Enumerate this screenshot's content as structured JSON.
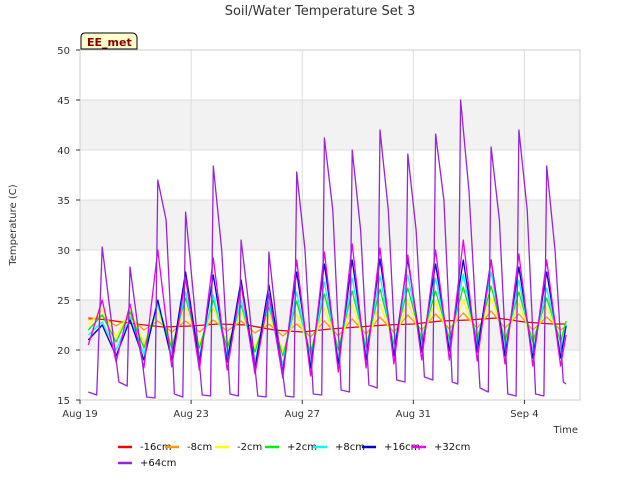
{
  "chart_data": {
    "type": "line",
    "title": "Soil/Water Temperature Set 3",
    "badge": "EE_met",
    "xlabel": "Time",
    "ylabel": "Temperature (C)",
    "ylim": [
      15,
      50
    ],
    "yticks": [
      15,
      20,
      25,
      30,
      35,
      40,
      45,
      50
    ],
    "xlim": [
      0,
      18
    ],
    "xticks": [
      {
        "value": 0,
        "label": "Aug 19"
      },
      {
        "value": 4,
        "label": "Aug 23"
      },
      {
        "value": 8,
        "label": "Aug 27"
      },
      {
        "value": 12,
        "label": "Aug 31"
      },
      {
        "value": 16,
        "label": "Sep 4"
      }
    ],
    "grid": true,
    "legend_placement": "bottom",
    "bands": true,
    "series": [
      {
        "name": "-16cm",
        "color": "#ee0000",
        "points": [
          [
            0.3,
            23.2
          ],
          [
            1,
            23.0
          ],
          [
            2,
            22.6
          ],
          [
            3,
            22.3
          ],
          [
            4,
            22.4
          ],
          [
            5,
            22.6
          ],
          [
            6,
            22.5
          ],
          [
            7,
            22.0
          ],
          [
            8,
            21.8
          ],
          [
            9,
            22.1
          ],
          [
            10,
            22.3
          ],
          [
            11,
            22.5
          ],
          [
            12,
            22.6
          ],
          [
            13,
            22.9
          ],
          [
            14,
            23.0
          ],
          [
            15,
            23.2
          ],
          [
            16,
            22.8
          ],
          [
            17,
            22.6
          ],
          [
            17.5,
            22.6
          ]
        ]
      },
      {
        "name": "-8cm",
        "color": "#ff9900",
        "points": [
          [
            0.3,
            23.0
          ],
          [
            0.8,
            23.4
          ],
          [
            1.3,
            22.4
          ],
          [
            1.8,
            23.3
          ],
          [
            2.3,
            22.0
          ],
          [
            2.8,
            22.9
          ],
          [
            3.3,
            21.8
          ],
          [
            3.8,
            22.9
          ],
          [
            4.3,
            21.8
          ],
          [
            4.8,
            23.0
          ],
          [
            5.3,
            21.9
          ],
          [
            5.8,
            22.9
          ],
          [
            6.3,
            21.7
          ],
          [
            6.8,
            22.6
          ],
          [
            7.3,
            21.4
          ],
          [
            7.8,
            22.6
          ],
          [
            8.3,
            21.3
          ],
          [
            8.8,
            22.9
          ],
          [
            9.3,
            21.4
          ],
          [
            9.8,
            23.1
          ],
          [
            10.3,
            21.6
          ],
          [
            10.8,
            23.3
          ],
          [
            11.3,
            21.8
          ],
          [
            11.8,
            23.5
          ],
          [
            12.3,
            22.0
          ],
          [
            12.8,
            23.6
          ],
          [
            13.3,
            22.1
          ],
          [
            13.8,
            23.7
          ],
          [
            14.3,
            22.2
          ],
          [
            14.8,
            23.9
          ],
          [
            15.3,
            22.2
          ],
          [
            15.8,
            23.6
          ],
          [
            16.3,
            22.0
          ],
          [
            16.8,
            23.3
          ],
          [
            17.3,
            22.0
          ],
          [
            17.5,
            22.4
          ]
        ]
      },
      {
        "name": "-2cm",
        "color": "#ffff00",
        "points": [
          [
            0.3,
            22.5
          ],
          [
            0.8,
            24.0
          ],
          [
            1.3,
            21.3
          ],
          [
            1.8,
            24.0
          ],
          [
            2.3,
            20.7
          ],
          [
            2.8,
            23.8
          ],
          [
            3.3,
            20.6
          ],
          [
            3.8,
            24.3
          ],
          [
            4.3,
            20.6
          ],
          [
            4.8,
            24.2
          ],
          [
            5.3,
            20.6
          ],
          [
            5.8,
            23.8
          ],
          [
            6.3,
            20.3
          ],
          [
            6.8,
            23.5
          ],
          [
            7.3,
            19.9
          ],
          [
            7.8,
            23.6
          ],
          [
            8.3,
            19.9
          ],
          [
            8.8,
            24.2
          ],
          [
            9.3,
            20.2
          ],
          [
            9.8,
            24.5
          ],
          [
            10.3,
            20.5
          ],
          [
            10.8,
            24.6
          ],
          [
            11.3,
            20.8
          ],
          [
            11.8,
            24.8
          ],
          [
            12.3,
            21.1
          ],
          [
            12.8,
            24.8
          ],
          [
            13.3,
            21.2
          ],
          [
            13.8,
            25.0
          ],
          [
            14.3,
            21.3
          ],
          [
            14.8,
            25.2
          ],
          [
            15.3,
            21.2
          ],
          [
            15.8,
            24.7
          ],
          [
            16.3,
            21.0
          ],
          [
            16.8,
            24.3
          ],
          [
            17.3,
            21.0
          ],
          [
            17.5,
            22.8
          ]
        ]
      },
      {
        "name": "+2cm",
        "color": "#00ee00",
        "points": [
          [
            0.3,
            22.0
          ],
          [
            0.8,
            23.5
          ],
          [
            1.3,
            20.8
          ],
          [
            1.8,
            23.8
          ],
          [
            2.3,
            20.2
          ],
          [
            2.8,
            24.5
          ],
          [
            3.3,
            20.2
          ],
          [
            3.8,
            25.2
          ],
          [
            4.3,
            20.2
          ],
          [
            4.8,
            25.0
          ],
          [
            5.3,
            20.2
          ],
          [
            5.8,
            24.5
          ],
          [
            6.3,
            19.8
          ],
          [
            6.8,
            24.3
          ],
          [
            7.3,
            19.4
          ],
          [
            7.8,
            24.9
          ],
          [
            8.3,
            19.6
          ],
          [
            8.8,
            25.6
          ],
          [
            9.3,
            20.0
          ],
          [
            9.8,
            25.9
          ],
          [
            10.3,
            20.3
          ],
          [
            10.8,
            26.1
          ],
          [
            11.3,
            20.6
          ],
          [
            11.8,
            26.2
          ],
          [
            12.3,
            21.0
          ],
          [
            12.8,
            25.9
          ],
          [
            13.3,
            21.1
          ],
          [
            13.8,
            26.3
          ],
          [
            14.3,
            21.1
          ],
          [
            14.8,
            26.4
          ],
          [
            15.3,
            20.9
          ],
          [
            15.8,
            25.8
          ],
          [
            16.3,
            20.8
          ],
          [
            16.8,
            25.2
          ],
          [
            17.3,
            20.8
          ],
          [
            17.5,
            22.9
          ]
        ]
      },
      {
        "name": "+8cm",
        "color": "#00ffff",
        "points": [
          [
            0.3,
            21.5
          ],
          [
            0.8,
            22.8
          ],
          [
            1.3,
            20.0
          ],
          [
            1.8,
            23.2
          ],
          [
            2.3,
            19.6
          ],
          [
            2.8,
            24.5
          ],
          [
            3.3,
            19.5
          ],
          [
            3.8,
            25.8
          ],
          [
            4.3,
            19.4
          ],
          [
            4.8,
            25.5
          ],
          [
            5.3,
            19.4
          ],
          [
            5.8,
            25.0
          ],
          [
            6.3,
            18.9
          ],
          [
            6.8,
            24.8
          ],
          [
            7.3,
            18.5
          ],
          [
            7.8,
            25.8
          ],
          [
            8.3,
            18.8
          ],
          [
            8.8,
            26.8
          ],
          [
            9.3,
            19.2
          ],
          [
            9.8,
            27.2
          ],
          [
            10.3,
            19.6
          ],
          [
            10.8,
            27.4
          ],
          [
            11.3,
            20.0
          ],
          [
            11.8,
            27.5
          ],
          [
            12.3,
            20.4
          ],
          [
            12.8,
            27.2
          ],
          [
            13.3,
            20.5
          ],
          [
            13.8,
            27.6
          ],
          [
            14.3,
            20.4
          ],
          [
            14.8,
            27.8
          ],
          [
            15.3,
            20.0
          ],
          [
            15.8,
            27.0
          ],
          [
            16.3,
            19.8
          ],
          [
            16.8,
            26.2
          ],
          [
            17.3,
            19.8
          ],
          [
            17.5,
            22.6
          ]
        ]
      },
      {
        "name": "+16cm",
        "color": "#0000cc",
        "points": [
          [
            0.3,
            21.0
          ],
          [
            0.8,
            22.5
          ],
          [
            1.3,
            19.4
          ],
          [
            1.8,
            23.0
          ],
          [
            2.3,
            19.0
          ],
          [
            2.8,
            25.0
          ],
          [
            3.3,
            19.0
          ],
          [
            3.8,
            27.8
          ],
          [
            4.3,
            18.8
          ],
          [
            4.8,
            27.5
          ],
          [
            5.3,
            18.8
          ],
          [
            5.8,
            27.0
          ],
          [
            6.3,
            18.2
          ],
          [
            6.8,
            26.5
          ],
          [
            7.3,
            17.8
          ],
          [
            7.8,
            27.8
          ],
          [
            8.3,
            18.2
          ],
          [
            8.8,
            28.6
          ],
          [
            9.3,
            18.6
          ],
          [
            9.8,
            29.0
          ],
          [
            10.3,
            19.0
          ],
          [
            10.8,
            29.1
          ],
          [
            11.3,
            19.4
          ],
          [
            11.8,
            29.1
          ],
          [
            12.3,
            19.8
          ],
          [
            12.8,
            28.6
          ],
          [
            13.3,
            19.9
          ],
          [
            13.8,
            29.0
          ],
          [
            14.3,
            19.8
          ],
          [
            14.8,
            29.0
          ],
          [
            15.3,
            19.4
          ],
          [
            15.8,
            28.3
          ],
          [
            16.3,
            19.2
          ],
          [
            16.8,
            27.8
          ],
          [
            17.3,
            19.2
          ],
          [
            17.5,
            22.4
          ]
        ]
      },
      {
        "name": "+32cm",
        "color": "#ee00ee",
        "points": [
          [
            0.3,
            20.5
          ],
          [
            0.8,
            25.0
          ],
          [
            1.3,
            18.8
          ],
          [
            1.8,
            24.6
          ],
          [
            2.3,
            18.2
          ],
          [
            2.8,
            30.0
          ],
          [
            3.3,
            18.3
          ],
          [
            3.8,
            27.2
          ],
          [
            4.3,
            18.0
          ],
          [
            4.8,
            29.2
          ],
          [
            5.3,
            18.0
          ],
          [
            5.8,
            26.5
          ],
          [
            6.3,
            17.6
          ],
          [
            6.8,
            25.6
          ],
          [
            7.3,
            17.2
          ],
          [
            7.8,
            29.0
          ],
          [
            8.3,
            17.4
          ],
          [
            8.8,
            29.8
          ],
          [
            9.3,
            17.8
          ],
          [
            9.8,
            30.6
          ],
          [
            10.3,
            18.2
          ],
          [
            10.8,
            30.2
          ],
          [
            11.3,
            18.6
          ],
          [
            11.8,
            29.5
          ],
          [
            12.3,
            19.0
          ],
          [
            12.8,
            30.0
          ],
          [
            13.3,
            19.0
          ],
          [
            13.8,
            31.0
          ],
          [
            14.3,
            18.9
          ],
          [
            14.8,
            29.0
          ],
          [
            15.3,
            18.6
          ],
          [
            15.8,
            29.6
          ],
          [
            16.3,
            18.4
          ],
          [
            16.8,
            29.0
          ],
          [
            17.3,
            18.4
          ],
          [
            17.5,
            21.5
          ]
        ]
      },
      {
        "name": "+64cm",
        "color": "#9922dd",
        "points": [
          [
            0.3,
            15.8
          ],
          [
            0.6,
            15.5
          ],
          [
            0.8,
            30.3
          ],
          [
            1.1,
            23.5
          ],
          [
            1.4,
            16.8
          ],
          [
            1.7,
            16.4
          ],
          [
            1.8,
            28.3
          ],
          [
            2.1,
            22.0
          ],
          [
            2.4,
            15.3
          ],
          [
            2.7,
            15.2
          ],
          [
            2.8,
            37.0
          ],
          [
            3.1,
            33.0
          ],
          [
            3.4,
            15.6
          ],
          [
            3.7,
            15.3
          ],
          [
            3.8,
            33.8
          ],
          [
            4.1,
            25.0
          ],
          [
            4.4,
            15.5
          ],
          [
            4.7,
            15.4
          ],
          [
            4.8,
            38.4
          ],
          [
            5.1,
            30.0
          ],
          [
            5.4,
            15.6
          ],
          [
            5.7,
            15.4
          ],
          [
            5.8,
            31.0
          ],
          [
            6.1,
            24.0
          ],
          [
            6.4,
            15.4
          ],
          [
            6.7,
            15.3
          ],
          [
            6.8,
            29.8
          ],
          [
            7.1,
            22.0
          ],
          [
            7.4,
            15.4
          ],
          [
            7.7,
            15.3
          ],
          [
            7.8,
            37.8
          ],
          [
            8.1,
            30.0
          ],
          [
            8.4,
            15.6
          ],
          [
            8.7,
            15.5
          ],
          [
            8.8,
            41.2
          ],
          [
            9.1,
            34.0
          ],
          [
            9.4,
            16.0
          ],
          [
            9.7,
            15.8
          ],
          [
            9.8,
            40.0
          ],
          [
            10.1,
            32.0
          ],
          [
            10.4,
            16.5
          ],
          [
            10.7,
            16.2
          ],
          [
            10.8,
            42.0
          ],
          [
            11.1,
            34.0
          ],
          [
            11.4,
            17.0
          ],
          [
            11.7,
            16.8
          ],
          [
            11.8,
            39.6
          ],
          [
            12.1,
            32.0
          ],
          [
            12.4,
            17.3
          ],
          [
            12.7,
            17.0
          ],
          [
            12.8,
            41.6
          ],
          [
            13.1,
            35.0
          ],
          [
            13.4,
            16.8
          ],
          [
            13.6,
            16.6
          ],
          [
            13.7,
            45.0
          ],
          [
            14.0,
            36.0
          ],
          [
            14.4,
            16.2
          ],
          [
            14.7,
            15.8
          ],
          [
            14.8,
            40.3
          ],
          [
            15.1,
            33.0
          ],
          [
            15.4,
            15.6
          ],
          [
            15.7,
            15.4
          ],
          [
            15.8,
            42.0
          ],
          [
            16.1,
            34.0
          ],
          [
            16.4,
            15.6
          ],
          [
            16.7,
            15.4
          ],
          [
            16.8,
            38.4
          ],
          [
            17.1,
            30.0
          ],
          [
            17.4,
            16.8
          ],
          [
            17.5,
            16.6
          ]
        ]
      }
    ]
  }
}
